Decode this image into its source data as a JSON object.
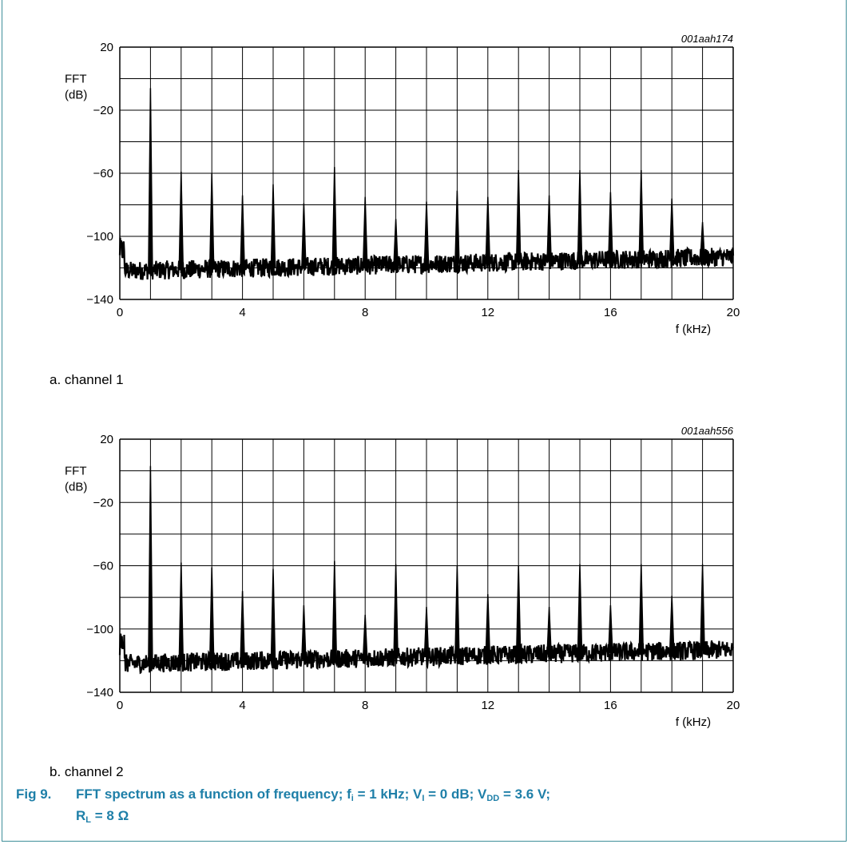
{
  "caption": {
    "label": "Fig 9.",
    "text_line1": "FFT spectrum as a function of frequency;",
    "fi": "f",
    "fi_sub": "i",
    "fi_val": " = 1 kHz;",
    "vi": " V",
    "vi_sub": "I",
    "vi_val": " = 0 dB;",
    "vdd": " V",
    "vdd_sub": "DD",
    "vdd_val": " = 3.6 V;",
    "rl": "R",
    "rl_sub": "L",
    "rl_val": " = 8 Ω"
  },
  "chart_data": [
    {
      "type": "line",
      "code": "001aah174",
      "subtitle": "a.  channel 1",
      "ylabel_line1": "FFT",
      "ylabel_line2": "(dB)",
      "xlabel": "f (kHz)",
      "xlim": [
        0,
        20
      ],
      "ylim": [
        -140,
        20
      ],
      "xticks": [
        0,
        4,
        8,
        12,
        16,
        20
      ],
      "yticks": [
        20,
        -20,
        -60,
        -100,
        -140
      ],
      "ytick_labels": [
        "20",
        "−20",
        "−60",
        "−100",
        "−140"
      ],
      "grid": true,
      "noise_floor_start": -122,
      "noise_floor_end": -113,
      "peaks": [
        {
          "x": 1,
          "y": -6
        },
        {
          "x": 2,
          "y": -59
        },
        {
          "x": 3,
          "y": -60
        },
        {
          "x": 4,
          "y": -74
        },
        {
          "x": 5,
          "y": -67
        },
        {
          "x": 6,
          "y": -79
        },
        {
          "x": 7,
          "y": -56
        },
        {
          "x": 8,
          "y": -75
        },
        {
          "x": 9,
          "y": -89
        },
        {
          "x": 10,
          "y": -78
        },
        {
          "x": 11,
          "y": -71
        },
        {
          "x": 12,
          "y": -75
        },
        {
          "x": 13,
          "y": -58
        },
        {
          "x": 14,
          "y": -74
        },
        {
          "x": 15,
          "y": -58
        },
        {
          "x": 16,
          "y": -72
        },
        {
          "x": 17,
          "y": -58
        },
        {
          "x": 18,
          "y": -76
        },
        {
          "x": 19,
          "y": -91
        }
      ]
    },
    {
      "type": "line",
      "code": "001aah556",
      "subtitle": "b.  channel 2",
      "ylabel_line1": "FFT",
      "ylabel_line2": "(dB)",
      "xlabel": "f (kHz)",
      "xlim": [
        0,
        20
      ],
      "ylim": [
        -140,
        20
      ],
      "xticks": [
        0,
        4,
        8,
        12,
        16,
        20
      ],
      "yticks": [
        20,
        -20,
        -60,
        -100,
        -140
      ],
      "ytick_labels": [
        "20",
        "−20",
        "−60",
        "−100",
        "−140"
      ],
      "grid": true,
      "noise_floor_start": -122,
      "noise_floor_end": -113,
      "peaks": [
        {
          "x": 1,
          "y": 3
        },
        {
          "x": 2,
          "y": -58
        },
        {
          "x": 3,
          "y": -61
        },
        {
          "x": 4,
          "y": -76
        },
        {
          "x": 5,
          "y": -62
        },
        {
          "x": 6,
          "y": -85
        },
        {
          "x": 7,
          "y": -57
        },
        {
          "x": 8,
          "y": -91
        },
        {
          "x": 9,
          "y": -59
        },
        {
          "x": 10,
          "y": -86
        },
        {
          "x": 11,
          "y": -60
        },
        {
          "x": 12,
          "y": -78
        },
        {
          "x": 13,
          "y": -60
        },
        {
          "x": 14,
          "y": -86
        },
        {
          "x": 15,
          "y": -59
        },
        {
          "x": 16,
          "y": -85
        },
        {
          "x": 17,
          "y": -59
        },
        {
          "x": 18,
          "y": -79
        },
        {
          "x": 19,
          "y": -59
        }
      ]
    }
  ]
}
